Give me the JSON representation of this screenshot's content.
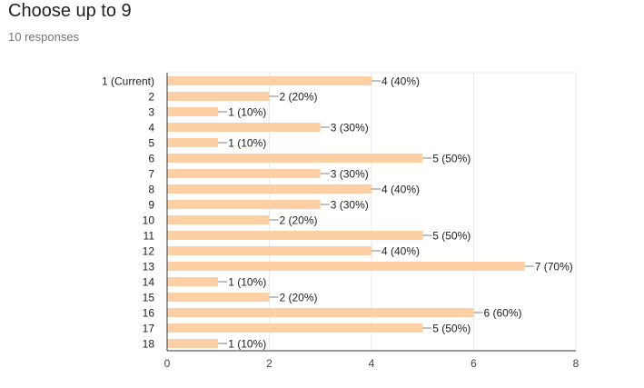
{
  "header": {
    "title": "Choose up to 9",
    "subtitle": "10 responses"
  },
  "colors": {
    "bar": "#fcd0a3",
    "connector": "#808080",
    "axis": "#333333",
    "grid": "#ebebeb"
  },
  "chart_data": {
    "type": "bar",
    "orientation": "horizontal",
    "categories": [
      "1 (Current)",
      "2",
      "3",
      "4",
      "5",
      "6",
      "7",
      "8",
      "9",
      "10",
      "11",
      "12",
      "13",
      "14",
      "15",
      "16",
      "17",
      "18"
    ],
    "values": [
      4,
      2,
      1,
      3,
      1,
      5,
      3,
      4,
      3,
      2,
      5,
      4,
      7,
      1,
      2,
      6,
      5,
      1
    ],
    "data_labels": [
      "4 (40%)",
      "2 (20%)",
      "1 (10%)",
      "3 (30%)",
      "1 (10%)",
      "5 (50%)",
      "3 (30%)",
      "4 (40%)",
      "3 (30%)",
      "2 (20%)",
      "5 (50%)",
      "4 (40%)",
      "7 (70%)",
      "1 (10%)",
      "2 (20%)",
      "6 (60%)",
      "5 (50%)",
      "1 (10%)"
    ],
    "x_ticks": [
      "0",
      "2",
      "4",
      "6",
      "8"
    ],
    "xlim": [
      0,
      8
    ],
    "xlabel": "",
    "ylabel": "",
    "grid": true,
    "legend": "none"
  }
}
